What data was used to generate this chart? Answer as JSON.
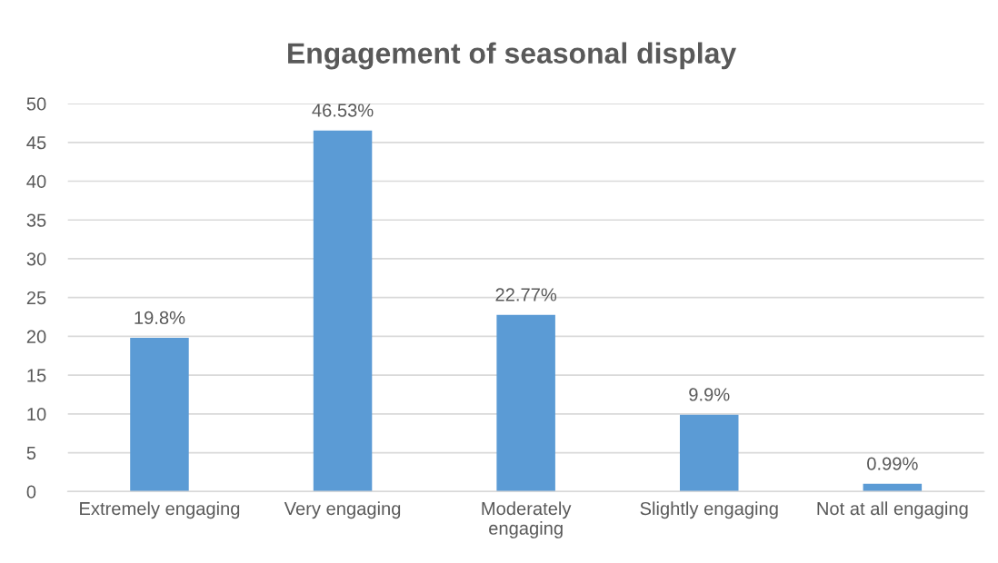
{
  "chart_data": {
    "type": "bar",
    "title": "Engagement of seasonal display",
    "categories": [
      "Extremely engaging",
      "Very engaging",
      "Moderately\nengaging",
      "Slightly engaging",
      "Not at all engaging"
    ],
    "values": [
      19.8,
      46.53,
      22.77,
      9.9,
      0.99
    ],
    "value_labels": [
      "19.8%",
      "46.53%",
      "22.77%",
      "9.9%",
      "0.99%"
    ],
    "color": "#5b9bd5",
    "ylim": [
      0,
      50
    ],
    "yticks": [
      0,
      5,
      10,
      15,
      20,
      25,
      30,
      35,
      40,
      45,
      50
    ],
    "grid": "y"
  }
}
